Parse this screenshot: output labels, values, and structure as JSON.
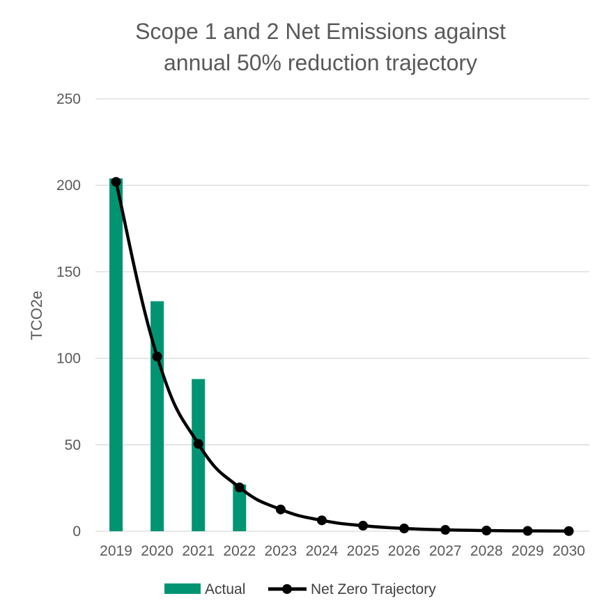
{
  "chart_data": {
    "type": "bar",
    "title_lines": [
      "Scope 1 and 2 Net Emissions against",
      "annual 50% reduction trajectory"
    ],
    "ylabel": "TCO2e",
    "xlabel": "",
    "ylim": [
      0,
      250
    ],
    "yticks": [
      0,
      50,
      100,
      150,
      200,
      250
    ],
    "grid": true,
    "legend_position": "bottom",
    "categories": [
      "2019",
      "2020",
      "2021",
      "2022",
      "2023",
      "2024",
      "2025",
      "2026",
      "2027",
      "2028",
      "2029",
      "2030"
    ],
    "series": [
      {
        "name": "Actual",
        "type": "bar",
        "color": "#009473",
        "values": [
          204,
          133,
          88,
          27,
          null,
          null,
          null,
          null,
          null,
          null,
          null,
          null
        ]
      },
      {
        "name": "Net Zero Trajectory",
        "type": "line",
        "color": "#000000",
        "values": [
          202,
          101,
          50.5,
          25.3,
          12.6,
          6.3,
          3.2,
          1.6,
          0.8,
          0.4,
          0.2,
          0.1
        ]
      }
    ]
  }
}
